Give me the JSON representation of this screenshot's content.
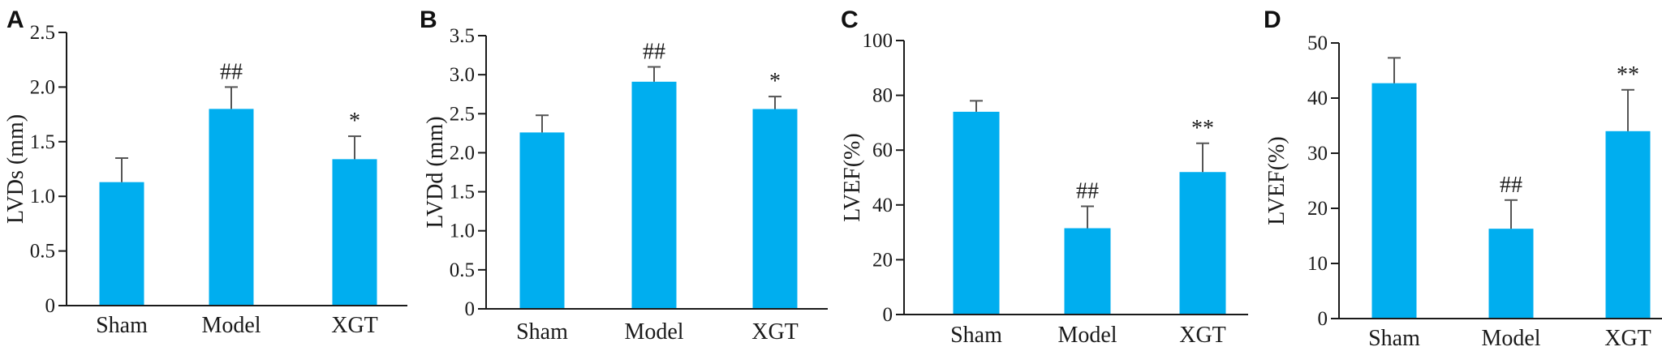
{
  "bar_color": "#00aeef",
  "chart_data": [
    {
      "type": "bar",
      "panel": "A",
      "ylabel": "LVDs (mm)",
      "xlabel": "",
      "categories": [
        "Sham",
        "Model",
        "XGT"
      ],
      "values": [
        1.13,
        1.8,
        1.34
      ],
      "errors": [
        0.22,
        0.2,
        0.21
      ],
      "significance": [
        "",
        "##",
        "*"
      ],
      "ylim": [
        0,
        2.5
      ],
      "yticks": [
        0,
        0.5,
        1.0,
        1.5,
        2.0,
        2.5
      ],
      "ytick_labels": [
        "0",
        "0.5",
        "1.0",
        "1.5",
        "2.0",
        "2.5"
      ]
    },
    {
      "type": "bar",
      "panel": "B",
      "ylabel": "LVDd (mm)",
      "xlabel": "",
      "categories": [
        "Sham",
        "Model",
        "XGT"
      ],
      "values": [
        2.26,
        2.91,
        2.56
      ],
      "errors": [
        0.22,
        0.19,
        0.16
      ],
      "significance": [
        "",
        "##",
        "*"
      ],
      "ylim": [
        0,
        3.5
      ],
      "yticks": [
        0,
        0.5,
        1.0,
        1.5,
        2.0,
        2.5,
        3.0,
        3.5
      ],
      "ytick_labels": [
        "0",
        "0.5",
        "1.0",
        "1.5",
        "2.0",
        "2.5",
        "3.0",
        "3.5"
      ]
    },
    {
      "type": "bar",
      "panel": "C",
      "ylabel": "LVEF(%)",
      "xlabel": "",
      "categories": [
        "Sham",
        "Model",
        "XGT"
      ],
      "values": [
        74,
        31.5,
        52
      ],
      "errors": [
        4,
        8,
        10.5
      ],
      "significance": [
        "",
        "##",
        "**"
      ],
      "ylim": [
        0,
        100
      ],
      "yticks": [
        0,
        20,
        40,
        60,
        80,
        100
      ],
      "ytick_labels": [
        "0",
        "20",
        "40",
        "60",
        "80",
        "100"
      ]
    },
    {
      "type": "bar",
      "panel": "D",
      "ylabel": "LVEF(%)",
      "xlabel": "",
      "categories": [
        "Sham",
        "Model",
        "XGT"
      ],
      "values": [
        42.7,
        16.3,
        34
      ],
      "errors": [
        4.6,
        5.2,
        7.5
      ],
      "significance": [
        "",
        "##",
        "**"
      ],
      "ylim": [
        0,
        50
      ],
      "yticks": [
        0,
        10,
        20,
        30,
        40,
        50
      ],
      "ytick_labels": [
        "0",
        "10",
        "20",
        "30",
        "40",
        "50"
      ]
    }
  ]
}
